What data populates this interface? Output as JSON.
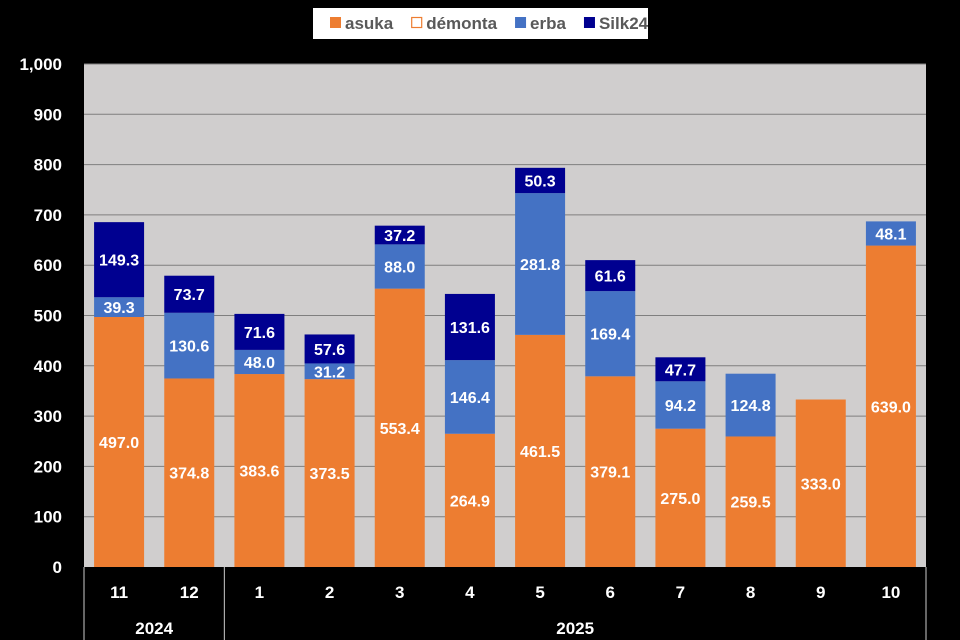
{
  "chart_data": {
    "type": "bar",
    "stacked": true,
    "categories": [
      "11",
      "12",
      "1",
      "2",
      "3",
      "4",
      "5",
      "6",
      "7",
      "8",
      "9",
      "10"
    ],
    "year_groups": [
      {
        "label": "2024",
        "count": 2
      },
      {
        "label": "2025",
        "count": 10
      }
    ],
    "series": [
      {
        "name": "asuka",
        "color": "#ED7D31",
        "values": [
          497.0,
          374.8,
          383.6,
          373.5,
          553.4,
          264.9,
          461.5,
          379.1,
          275.0,
          259.5,
          333.0,
          639.0
        ]
      },
      {
        "name": "démonta",
        "color": "#ED7D31",
        "hollow": true,
        "values": [
          0,
          0,
          0,
          0,
          0,
          0,
          0,
          0,
          0,
          0,
          0,
          0
        ]
      },
      {
        "name": "erba",
        "color": "#4472C4",
        "values": [
          39.3,
          130.6,
          48.0,
          31.2,
          88.0,
          146.4,
          281.8,
          169.4,
          94.2,
          124.8,
          0,
          48.1
        ]
      },
      {
        "name": "Silk24",
        "color": "#000090",
        "values": [
          149.3,
          73.7,
          71.6,
          57.6,
          37.2,
          131.6,
          50.3,
          61.6,
          47.7,
          0,
          0,
          0
        ]
      }
    ],
    "data_labels": {
      "asuka": [
        "497.0",
        "374.8",
        "383.6",
        "373.5",
        "553.4",
        "264.9",
        "461.5",
        "379.1",
        "275.0",
        "259.5",
        "333.0",
        "639.0"
      ],
      "erba": [
        "39.3",
        "130.6",
        "48.0",
        "31.2",
        "88.0",
        "146.4",
        "281.8",
        "169.4",
        "94.2",
        "124.8",
        "",
        "48.1"
      ],
      "Silk24": [
        "149.3",
        "73.7",
        "71.6",
        "57.6",
        "37.2",
        "131.6",
        "50.3",
        "61.6",
        "47.7",
        "",
        "",
        ""
      ]
    },
    "yticks": [
      "0",
      "100",
      "200",
      "300",
      "400",
      "500",
      "600",
      "700",
      "800",
      "900",
      "1,000"
    ],
    "ylim": [
      0,
      1000
    ],
    "grid": true,
    "legend": "top-center",
    "plot_bg": "#D0CECE",
    "title": "",
    "xlabel": "",
    "ylabel": ""
  }
}
